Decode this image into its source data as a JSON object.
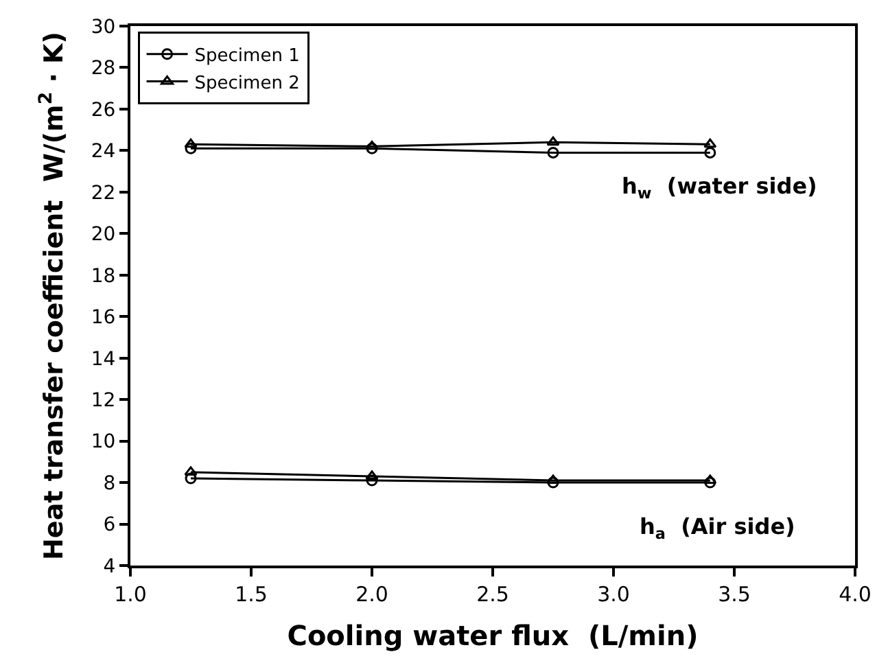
{
  "chart_data": {
    "type": "line",
    "xlabel": "Cooling water flux  (L/min)",
    "ylabel": "Heat transfer coefficient  W/(m$^{2}$ · K)",
    "x": [
      1.25,
      2.0,
      2.75,
      3.4
    ],
    "series": [
      {
        "name": "Specimen 1",
        "color": "#000000",
        "marker": "circle",
        "values": [
          24.1,
          24.1,
          23.9,
          23.9
        ]
      },
      {
        "name": "Specimen 2",
        "color": "#000000",
        "marker": "triangle",
        "values": [
          24.3,
          24.2,
          24.4,
          24.3
        ]
      },
      {
        "color": "#000000",
        "marker": "circle",
        "values": [
          8.2,
          8.1,
          8.0,
          8.0
        ]
      },
      {
        "color": "#000000",
        "marker": "triangle",
        "values": [
          8.5,
          8.3,
          8.1,
          8.1
        ]
      }
    ],
    "xlim": [
      1.0,
      4.0
    ],
    "xticks": [
      {
        "value": 1.0,
        "label": "1.0"
      },
      {
        "value": 1.5,
        "label": "1.5"
      },
      {
        "value": 2.0,
        "label": "2.0"
      },
      {
        "value": 2.5,
        "label": "2.5"
      },
      {
        "value": 3.0,
        "label": "3.0"
      },
      {
        "value": 3.5,
        "label": "3.5"
      },
      {
        "value": 4.0,
        "label": "4.0"
      }
    ],
    "ylim": [
      4,
      30
    ],
    "yticks": [
      4,
      6,
      8,
      10,
      12,
      14,
      16,
      18,
      20,
      22,
      24,
      26,
      28,
      30
    ],
    "annotations": [
      "h$_{w}$  (water side)",
      "h$_{a}$  (Air side)"
    ],
    "legend": "top left",
    "line_style": "solid"
  }
}
